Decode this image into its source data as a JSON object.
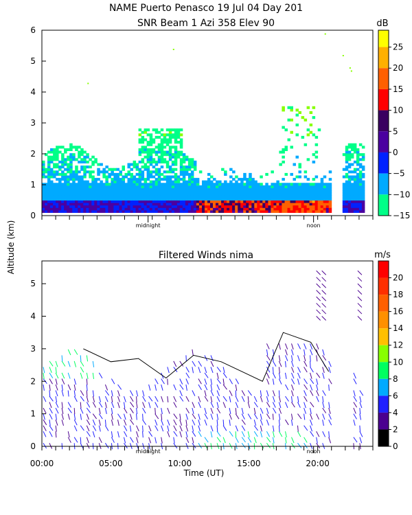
{
  "chart_data": [
    {
      "type": "heatmap",
      "title": "NAME Puerto Penasco  19 Jul 04 Day 201",
      "subtitle": "SNR Beam 1 Azi 358 Elev 90",
      "ylabel": "Altitude (km)",
      "ylim": [
        0,
        6
      ],
      "y_ticks": [
        "0",
        "1",
        "2",
        "3",
        "4",
        "5",
        "6"
      ],
      "x_markers": [
        {
          "label": "midnight",
          "x_hours": 7.7
        },
        {
          "label": "noon",
          "x_hours": 19.7
        }
      ],
      "colorbar": {
        "unit": "dB",
        "range": [
          -15,
          29
        ],
        "ticks": [
          "25",
          "20",
          "15",
          "10",
          "5",
          "0",
          "−5",
          "−10",
          "−15"
        ],
        "bands": [
          {
            "from": 25,
            "to": 29,
            "color": "#ffff00"
          },
          {
            "from": 20,
            "to": 25,
            "color": "#ffb000"
          },
          {
            "from": 15,
            "to": 20,
            "color": "#ff6000"
          },
          {
            "from": 10,
            "to": 15,
            "color": "#ff0000"
          },
          {
            "from": 5,
            "to": 10,
            "color": "#3a0060"
          },
          {
            "from": 0,
            "to": 5,
            "color": "#4b00a0"
          },
          {
            "from": -5,
            "to": 0,
            "color": "#0022ff"
          },
          {
            "from": -10,
            "to": -5,
            "color": "#00aaff"
          },
          {
            "from": -15,
            "to": -10,
            "color": "#00ff88"
          },
          {
            "from": -18,
            "to": -15,
            "color": "#88ff00"
          }
        ]
      }
    },
    {
      "type": "scatter",
      "title": "Filtered Winds nima",
      "xlabel": "Time (UT)",
      "x_ticks": [
        "00:00",
        "05:00",
        "10:00",
        "15:00",
        "20:00"
      ],
      "xlim": [
        0,
        24
      ],
      "ylim": [
        0,
        5.7
      ],
      "y_ticks": [
        "0",
        "1",
        "2",
        "3",
        "4",
        "5"
      ],
      "x_markers": [
        {
          "label": "midnight",
          "x_hours": 7.7
        },
        {
          "label": "noon",
          "x_hours": 19.7
        }
      ],
      "colorbar": {
        "unit": "m/s",
        "range": [
          0,
          22
        ],
        "ticks": [
          "20",
          "18",
          "16",
          "14",
          "12",
          "10",
          "8",
          "6",
          "4",
          "2",
          "0"
        ],
        "bands": [
          {
            "from": 20,
            "to": 22,
            "color": "#ff0000"
          },
          {
            "from": 18,
            "to": 20,
            "color": "#ff3000"
          },
          {
            "from": 16,
            "to": 18,
            "color": "#ff6000"
          },
          {
            "from": 14,
            "to": 16,
            "color": "#ff9000"
          },
          {
            "from": 12,
            "to": 14,
            "color": "#ffc000"
          },
          {
            "from": 10,
            "to": 12,
            "color": "#88ff00"
          },
          {
            "from": 8,
            "to": 10,
            "color": "#00ff60"
          },
          {
            "from": 6,
            "to": 8,
            "color": "#00aaff"
          },
          {
            "from": 4,
            "to": 6,
            "color": "#2020ff"
          },
          {
            "from": 2,
            "to": 4,
            "color": "#4b0090"
          },
          {
            "from": 0,
            "to": 2,
            "color": "#000000"
          }
        ]
      }
    }
  ]
}
